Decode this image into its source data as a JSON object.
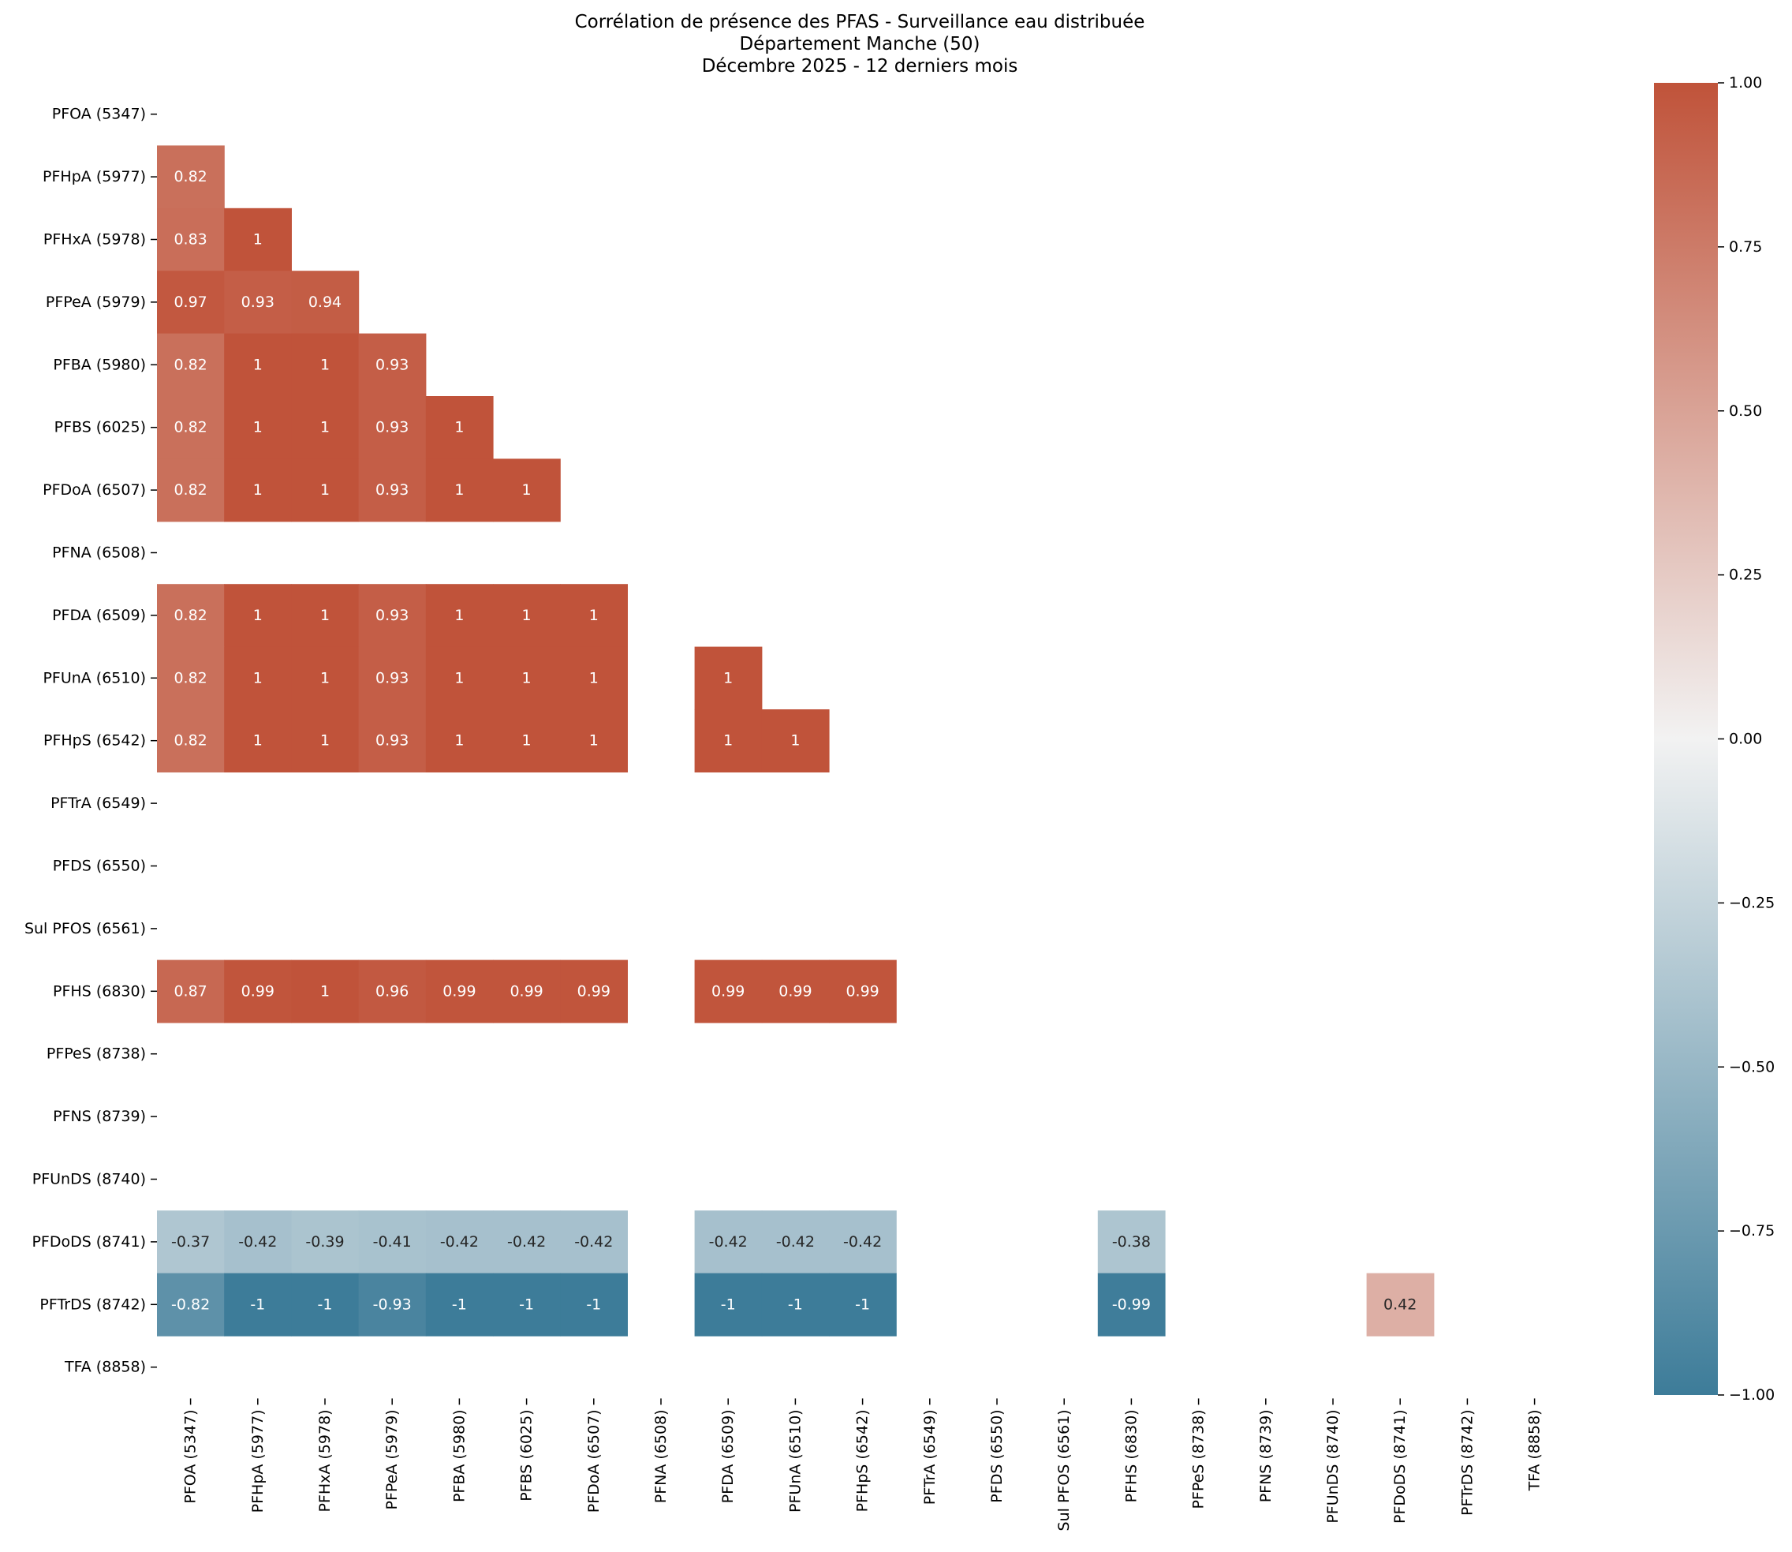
{
  "chart_data": {
    "type": "heatmap",
    "title_lines": [
      "Corrélation de présence des PFAS - Surveillance eau distribuée",
      "Département Manche (50)",
      "Décembre 2025 - 12 derniers mois"
    ],
    "xlabel": "",
    "ylabel": "",
    "labels": [
      "PFOA (5347)",
      "PFHpA (5977)",
      "PFHxA (5978)",
      "PFPeA (5979)",
      "PFBA (5980)",
      "PFBS (6025)",
      "PFDoA (6507)",
      "PFNA (6508)",
      "PFDA (6509)",
      "PFUnA (6510)",
      "PFHpS (6542)",
      "PFTrA (6549)",
      "PFDS (6550)",
      "Sul PFOS (6561)",
      "PFHS (6830)",
      "PFPeS (8738)",
      "PFNS (8739)",
      "PFUnDS (8740)",
      "PFDoDS (8741)",
      "PFTrDS (8742)",
      "TFA (8858)"
    ],
    "cells": [
      {
        "row": 1,
        "col": 0,
        "value": 0.82,
        "label": "0.82"
      },
      {
        "row": 2,
        "col": 0,
        "value": 0.83,
        "label": "0.83"
      },
      {
        "row": 2,
        "col": 1,
        "value": 1,
        "label": "1"
      },
      {
        "row": 3,
        "col": 0,
        "value": 0.97,
        "label": "0.97"
      },
      {
        "row": 3,
        "col": 1,
        "value": 0.93,
        "label": "0.93"
      },
      {
        "row": 3,
        "col": 2,
        "value": 0.94,
        "label": "0.94"
      },
      {
        "row": 4,
        "col": 0,
        "value": 0.82,
        "label": "0.82"
      },
      {
        "row": 4,
        "col": 1,
        "value": 1,
        "label": "1"
      },
      {
        "row": 4,
        "col": 2,
        "value": 1,
        "label": "1"
      },
      {
        "row": 4,
        "col": 3,
        "value": 0.93,
        "label": "0.93"
      },
      {
        "row": 5,
        "col": 0,
        "value": 0.82,
        "label": "0.82"
      },
      {
        "row": 5,
        "col": 1,
        "value": 1,
        "label": "1"
      },
      {
        "row": 5,
        "col": 2,
        "value": 1,
        "label": "1"
      },
      {
        "row": 5,
        "col": 3,
        "value": 0.93,
        "label": "0.93"
      },
      {
        "row": 5,
        "col": 4,
        "value": 1,
        "label": "1"
      },
      {
        "row": 6,
        "col": 0,
        "value": 0.82,
        "label": "0.82"
      },
      {
        "row": 6,
        "col": 1,
        "value": 1,
        "label": "1"
      },
      {
        "row": 6,
        "col": 2,
        "value": 1,
        "label": "1"
      },
      {
        "row": 6,
        "col": 3,
        "value": 0.93,
        "label": "0.93"
      },
      {
        "row": 6,
        "col": 4,
        "value": 1,
        "label": "1"
      },
      {
        "row": 6,
        "col": 5,
        "value": 1,
        "label": "1"
      },
      {
        "row": 8,
        "col": 0,
        "value": 0.82,
        "label": "0.82"
      },
      {
        "row": 8,
        "col": 1,
        "value": 1,
        "label": "1"
      },
      {
        "row": 8,
        "col": 2,
        "value": 1,
        "label": "1"
      },
      {
        "row": 8,
        "col": 3,
        "value": 0.93,
        "label": "0.93"
      },
      {
        "row": 8,
        "col": 4,
        "value": 1,
        "label": "1"
      },
      {
        "row": 8,
        "col": 5,
        "value": 1,
        "label": "1"
      },
      {
        "row": 8,
        "col": 6,
        "value": 1,
        "label": "1"
      },
      {
        "row": 9,
        "col": 0,
        "value": 0.82,
        "label": "0.82"
      },
      {
        "row": 9,
        "col": 1,
        "value": 1,
        "label": "1"
      },
      {
        "row": 9,
        "col": 2,
        "value": 1,
        "label": "1"
      },
      {
        "row": 9,
        "col": 3,
        "value": 0.93,
        "label": "0.93"
      },
      {
        "row": 9,
        "col": 4,
        "value": 1,
        "label": "1"
      },
      {
        "row": 9,
        "col": 5,
        "value": 1,
        "label": "1"
      },
      {
        "row": 9,
        "col": 6,
        "value": 1,
        "label": "1"
      },
      {
        "row": 9,
        "col": 8,
        "value": 1,
        "label": "1"
      },
      {
        "row": 10,
        "col": 0,
        "value": 0.82,
        "label": "0.82"
      },
      {
        "row": 10,
        "col": 1,
        "value": 1,
        "label": "1"
      },
      {
        "row": 10,
        "col": 2,
        "value": 1,
        "label": "1"
      },
      {
        "row": 10,
        "col": 3,
        "value": 0.93,
        "label": "0.93"
      },
      {
        "row": 10,
        "col": 4,
        "value": 1,
        "label": "1"
      },
      {
        "row": 10,
        "col": 5,
        "value": 1,
        "label": "1"
      },
      {
        "row": 10,
        "col": 6,
        "value": 1,
        "label": "1"
      },
      {
        "row": 10,
        "col": 8,
        "value": 1,
        "label": "1"
      },
      {
        "row": 10,
        "col": 9,
        "value": 1,
        "label": "1"
      },
      {
        "row": 14,
        "col": 0,
        "value": 0.87,
        "label": "0.87"
      },
      {
        "row": 14,
        "col": 1,
        "value": 0.99,
        "label": "0.99"
      },
      {
        "row": 14,
        "col": 2,
        "value": 1,
        "label": "1"
      },
      {
        "row": 14,
        "col": 3,
        "value": 0.96,
        "label": "0.96"
      },
      {
        "row": 14,
        "col": 4,
        "value": 0.99,
        "label": "0.99"
      },
      {
        "row": 14,
        "col": 5,
        "value": 0.99,
        "label": "0.99"
      },
      {
        "row": 14,
        "col": 6,
        "value": 0.99,
        "label": "0.99"
      },
      {
        "row": 14,
        "col": 8,
        "value": 0.99,
        "label": "0.99"
      },
      {
        "row": 14,
        "col": 9,
        "value": 0.99,
        "label": "0.99"
      },
      {
        "row": 14,
        "col": 10,
        "value": 0.99,
        "label": "0.99"
      },
      {
        "row": 18,
        "col": 0,
        "value": -0.37,
        "label": "-0.37"
      },
      {
        "row": 18,
        "col": 1,
        "value": -0.42,
        "label": "-0.42"
      },
      {
        "row": 18,
        "col": 2,
        "value": -0.39,
        "label": "-0.39"
      },
      {
        "row": 18,
        "col": 3,
        "value": -0.41,
        "label": "-0.41"
      },
      {
        "row": 18,
        "col": 4,
        "value": -0.42,
        "label": "-0.42"
      },
      {
        "row": 18,
        "col": 5,
        "value": -0.42,
        "label": "-0.42"
      },
      {
        "row": 18,
        "col": 6,
        "value": -0.42,
        "label": "-0.42"
      },
      {
        "row": 18,
        "col": 8,
        "value": -0.42,
        "label": "-0.42"
      },
      {
        "row": 18,
        "col": 9,
        "value": -0.42,
        "label": "-0.42"
      },
      {
        "row": 18,
        "col": 10,
        "value": -0.42,
        "label": "-0.42"
      },
      {
        "row": 18,
        "col": 14,
        "value": -0.38,
        "label": "-0.38"
      },
      {
        "row": 19,
        "col": 0,
        "value": -0.82,
        "label": "-0.82"
      },
      {
        "row": 19,
        "col": 1,
        "value": -1,
        "label": "-1"
      },
      {
        "row": 19,
        "col": 2,
        "value": -1,
        "label": "-1"
      },
      {
        "row": 19,
        "col": 3,
        "value": -0.93,
        "label": "-0.93"
      },
      {
        "row": 19,
        "col": 4,
        "value": -1,
        "label": "-1"
      },
      {
        "row": 19,
        "col": 5,
        "value": -1,
        "label": "-1"
      },
      {
        "row": 19,
        "col": 6,
        "value": -1,
        "label": "-1"
      },
      {
        "row": 19,
        "col": 8,
        "value": -1,
        "label": "-1"
      },
      {
        "row": 19,
        "col": 9,
        "value": -1,
        "label": "-1"
      },
      {
        "row": 19,
        "col": 10,
        "value": -1,
        "label": "-1"
      },
      {
        "row": 19,
        "col": 14,
        "value": -0.99,
        "label": "-0.99"
      },
      {
        "row": 19,
        "col": 18,
        "value": 0.42,
        "label": "0.42"
      }
    ],
    "colorbar": {
      "range": [
        -1,
        1
      ],
      "ticks": [
        1,
        0.75,
        0.5,
        0.25,
        0,
        -0.25,
        -0.5,
        -0.75,
        -1
      ],
      "tick_labels": [
        "1.00",
        "0.75",
        "0.50",
        "0.25",
        "0.00",
        "−0.25",
        "−0.50",
        "−0.75",
        "−1.00"
      ],
      "colors": {
        "negative": "#3d7c99",
        "mid": "#f2f2f2",
        "positive": "#c0533a"
      }
    },
    "legend": "colorbar-right",
    "grid": false
  }
}
